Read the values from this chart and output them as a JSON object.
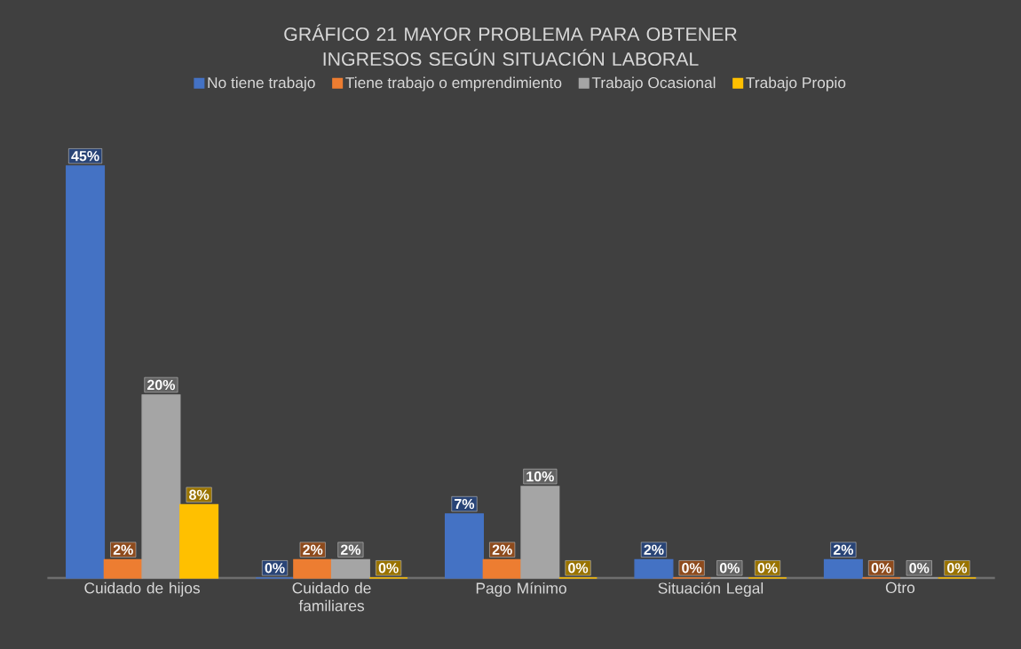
{
  "chart_data": {
    "type": "bar",
    "title": "GRÁFICO 21 MAYOR PROBLEMA PARA OBTENER INGRESOS SEGÚN SITUACIÓN LABORAL",
    "categories": [
      "Cuidado de hijos",
      "Cuidado de familiares",
      "Pago Mínimo",
      "Situación Legal",
      "Otro"
    ],
    "series": [
      {
        "name": "No tiene trabajo",
        "color": "#4472c4",
        "values": [
          45,
          0,
          7,
          2,
          2
        ],
        "value_labels": [
          "45%",
          "0%",
          "7%",
          "2%",
          "2%"
        ]
      },
      {
        "name": "Tiene trabajo o emprendimiento",
        "color": "#ed7d31",
        "values": [
          2,
          2,
          2,
          0,
          0
        ],
        "value_labels": [
          "2%",
          "2%",
          "2%",
          "0%",
          "0%"
        ]
      },
      {
        "name": "Trabajo Ocasional",
        "color": "#a5a5a5",
        "values": [
          20,
          2,
          10,
          0,
          0
        ],
        "value_labels": [
          "20%",
          "2%",
          "10%",
          "0%",
          "0%"
        ]
      },
      {
        "name": "Trabajo Propio",
        "color": "#ffc000",
        "values": [
          8,
          0,
          0,
          0,
          0
        ],
        "value_labels": [
          "8%",
          "0%",
          "0%",
          "0%",
          "0%"
        ]
      }
    ],
    "legend": "top"
  }
}
